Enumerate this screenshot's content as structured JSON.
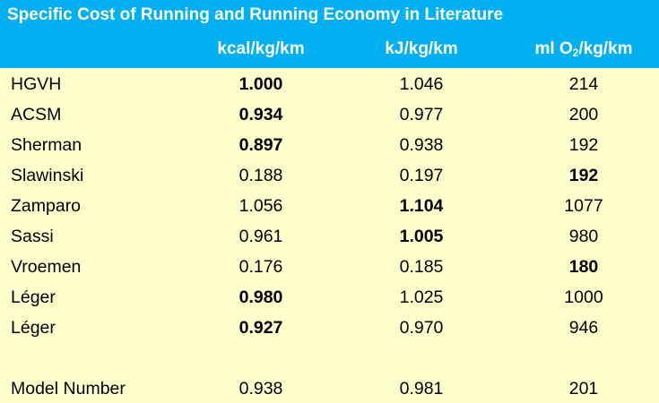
{
  "title": "Specific Cost of Running and Running Economy in Literature",
  "columns": [
    {
      "text": "kcal/kg/km"
    },
    {
      "text": "kJ/kg/km"
    },
    {
      "pre": "ml O",
      "sub": "2",
      "post": "/kg/km"
    }
  ],
  "rows": [
    {
      "name": "HGVH",
      "values": [
        "1.000",
        "1.046",
        "214"
      ],
      "bold": [
        true,
        false,
        false
      ]
    },
    {
      "name": "ACSM",
      "values": [
        "0.934",
        "0.977",
        "200"
      ],
      "bold": [
        true,
        false,
        false
      ]
    },
    {
      "name": "Sherman",
      "values": [
        "0.897",
        "0.938",
        "192"
      ],
      "bold": [
        true,
        false,
        false
      ]
    },
    {
      "name": "Slawinski",
      "values": [
        "0.188",
        "0.197",
        "192"
      ],
      "bold": [
        false,
        false,
        true
      ]
    },
    {
      "name": "Zamparo",
      "values": [
        "1.056",
        "1.104",
        "1077"
      ],
      "bold": [
        false,
        true,
        false
      ]
    },
    {
      "name": "Sassi",
      "values": [
        "0.961",
        "1.005",
        "980"
      ],
      "bold": [
        false,
        true,
        false
      ]
    },
    {
      "name": "Vroemen",
      "values": [
        "0.176",
        "0.185",
        "180"
      ],
      "bold": [
        false,
        false,
        true
      ]
    },
    {
      "name": "Léger",
      "values": [
        "0.980",
        "1.025",
        "1000"
      ],
      "bold": [
        true,
        false,
        false
      ]
    },
    {
      "name": "Léger",
      "values": [
        "0.927",
        "0.970",
        "946"
      ],
      "bold": [
        true,
        false,
        false
      ]
    }
  ],
  "summary": {
    "name": "Model Number",
    "values": [
      "0.938",
      "0.981",
      "201"
    ],
    "bold": [
      false,
      false,
      false
    ]
  },
  "colors": {
    "header_bg": "#00b0f0",
    "header_text": "#ffffff",
    "body_bg": "#ffffcc"
  }
}
